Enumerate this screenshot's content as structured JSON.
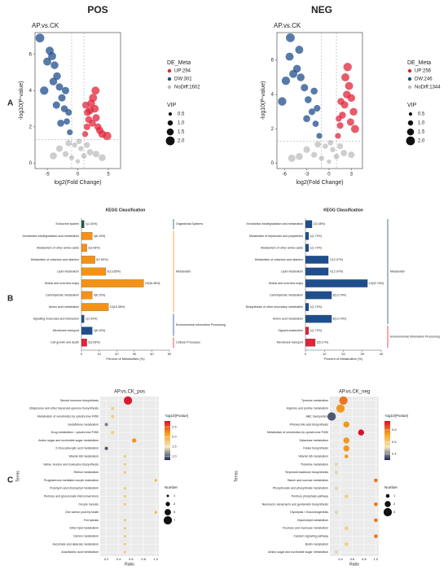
{
  "headers": [
    "POS",
    "NEG"
  ],
  "panel_labels": [
    "A",
    "B",
    "C"
  ],
  "chart_data": [
    {
      "type": "scatter",
      "title": "AP.vs.CK",
      "xlabel": "log2(Fold Change)",
      "ylabel": "-log10(P-value)",
      "xlim": [
        -7,
        7
      ],
      "ylim": [
        -0.3,
        7.2
      ],
      "xticks": [
        -5,
        0,
        5
      ],
      "yticks": [
        0,
        2,
        4,
        6
      ],
      "vlines": [
        -1,
        1
      ],
      "hline": 1.3,
      "legend_title": "DE_Meta",
      "size_legend": {
        "title": "VIP",
        "values": [
          0.5,
          {
            "value": 1,
            "label": "1.0"
          },
          1.5,
          {
            "value": 2,
            "label": "2.0"
          }
        ]
      },
      "series": [
        {
          "name": "UP:294",
          "color": "#e0243a",
          "x": [
            1.2,
            1.5,
            1.8,
            2.0,
            2.2,
            2.5,
            2.8,
            3.0,
            3.3,
            1.6,
            2.4,
            3.6,
            4.0,
            4.8,
            1.3,
            2.9
          ],
          "values": [
            1.6,
            2.0,
            2.4,
            2.9,
            3.3,
            3.6,
            3.0,
            2.5,
            2.0,
            2.8,
            2.2,
            1.8,
            1.6,
            1.5,
            3.2,
            4.0
          ],
          "size": [
            1.2,
            1.4,
            1.5,
            1.6,
            1.7,
            1.8,
            1.7,
            1.6,
            1.5,
            1.6,
            1.5,
            1.6,
            1.7,
            1.9,
            1.5,
            1.8
          ]
        },
        {
          "name": "DW:301",
          "color": "#1f4e8c",
          "x": [
            -1.3,
            -1.8,
            -2.2,
            -2.6,
            -3.0,
            -3.4,
            -3.8,
            -4.2,
            -4.6,
            -5.0,
            -4.0,
            -3.5,
            -2.8,
            -5.5,
            -6.2,
            -1.5,
            -2.0
          ],
          "values": [
            1.7,
            2.3,
            3.0,
            3.6,
            4.2,
            4.8,
            5.4,
            5.9,
            6.2,
            5.6,
            4.5,
            3.2,
            2.2,
            4.0,
            6.9,
            2.8,
            4.0
          ],
          "size": [
            1.2,
            1.3,
            1.5,
            1.6,
            1.6,
            1.7,
            1.7,
            1.8,
            1.8,
            1.8,
            1.7,
            1.6,
            1.5,
            1.9,
            2.0,
            1.4,
            1.6
          ]
        },
        {
          "name": "NoDiff:1602",
          "color": "#bdbdbd",
          "x": [
            -2,
            -1,
            0,
            0.5,
            1,
            2,
            -0.5,
            0.2,
            -3,
            3,
            -1.5,
            1.5,
            4,
            -4
          ],
          "values": [
            0.5,
            0.3,
            0.1,
            0.8,
            0.4,
            0.6,
            1.0,
            1.2,
            0.8,
            0.5,
            1.1,
            1.0,
            0.3,
            0.4
          ],
          "size": [
            1.2,
            1.0,
            0.8,
            1.0,
            1.1,
            1.3,
            1.0,
            1.1,
            1.4,
            1.4,
            1.3,
            1.2,
            1.5,
            1.5
          ]
        }
      ]
    },
    {
      "type": "scatter",
      "title": "AP.vs.CK",
      "xlabel": "log2(Fold Change)",
      "ylabel": "-log10(P-value)",
      "xlim": [
        -7,
        4.5
      ],
      "ylim": [
        -0.3,
        7.6
      ],
      "xticks": [
        -6,
        -3,
        0,
        3
      ],
      "yticks": [
        0,
        2,
        4,
        6
      ],
      "vlines": [
        -1,
        1
      ],
      "hline": 1.3,
      "legend_title": "DE_Meta",
      "size_legend": {
        "title": "VIP",
        "values": [
          0.5,
          {
            "value": 1,
            "label": "1.0"
          },
          1.5,
          {
            "value": 2,
            "label": "2.0"
          }
        ]
      },
      "series": [
        {
          "name": "UP:256",
          "color": "#e0243a",
          "x": [
            1.2,
            1.5,
            1.8,
            2.1,
            2.4,
            2.7,
            3.0,
            3.3,
            1.6,
            2.2,
            2.9,
            3.5,
            1.3,
            2.5
          ],
          "values": [
            1.6,
            2.2,
            2.8,
            3.4,
            4.0,
            4.5,
            3.8,
            3.0,
            3.6,
            5.0,
            2.4,
            2.0,
            2.6,
            5.6
          ],
          "size": [
            1.2,
            1.4,
            1.5,
            1.6,
            1.7,
            1.8,
            1.7,
            1.7,
            1.5,
            1.8,
            1.6,
            1.8,
            1.3,
            1.9
          ]
        },
        {
          "name": "DW:246",
          "color": "#1f4e8c",
          "x": [
            -1.3,
            -1.8,
            -2.3,
            -2.8,
            -3.3,
            -3.8,
            -4.3,
            -4.8,
            -5.3,
            -5.8,
            -4.0,
            -3.0,
            -2.0,
            -6.3,
            -5.2,
            -1.6
          ],
          "values": [
            1.6,
            2.3,
            3.0,
            3.7,
            4.4,
            5.0,
            5.5,
            5.2,
            6.2,
            4.8,
            6.6,
            2.6,
            4.2,
            3.6,
            7.3,
            3.2
          ],
          "size": [
            1.2,
            1.3,
            1.4,
            1.5,
            1.6,
            1.7,
            1.7,
            1.8,
            1.8,
            1.9,
            1.8,
            1.5,
            1.5,
            1.9,
            2.0,
            1.4
          ]
        },
        {
          "name": "NoDiff:1344",
          "color": "#bdbdbd",
          "x": [
            -2,
            -1,
            0,
            0.5,
            1,
            2,
            -0.5,
            0.2,
            -3,
            3,
            -1.5,
            1.5,
            -4,
            -5
          ],
          "values": [
            0.5,
            0.3,
            0.1,
            0.8,
            0.4,
            0.6,
            1.0,
            1.2,
            0.8,
            0.5,
            1.1,
            1.0,
            0.4,
            0.3
          ],
          "size": [
            1.2,
            1.0,
            0.8,
            1.0,
            1.1,
            1.3,
            1.0,
            1.1,
            1.4,
            1.4,
            1.3,
            1.2,
            1.5,
            1.6
          ]
        }
      ]
    },
    {
      "type": "bar",
      "title": "KEGG Classification",
      "xlabel": "Percent of Metabolites (%)",
      "xlim": [
        0,
        50
      ],
      "xticks": [
        0,
        10,
        20,
        30,
        40,
        50
      ],
      "categories": [
        "Endocrine system",
        "Xenobiotics biodegradation and metabolism",
        "Metabolism of other amino acids",
        "Metabolism of cofactors and vitamins",
        "Lipid metabolism",
        "Global and overview maps",
        "Carbohydrate metabolism",
        "Amino acid metabolism",
        "Signaling molecules and interaction",
        "Membrane transport",
        "Cell growth and death"
      ],
      "values": [
        1.54,
        6.15,
        3.08,
        7.69,
        13.85,
        35.38,
        6.15,
        15.38,
        1.54,
        6.15,
        3.08
      ],
      "value_labels": [
        "1(1.54%)",
        "4(6.15%)",
        "2(3.08%)",
        "5(7.69%)",
        "9(13.85%)",
        "23(35.38%)",
        "4(6.15%)",
        "10(15.38%)",
        "1(1.54%)",
        "4(6.15%)",
        "2(3.08%)"
      ],
      "category_groups": [
        "Organismal Systems",
        "Metabolism",
        "Metabolism",
        "Metabolism",
        "Metabolism",
        "Metabolism",
        "Metabolism",
        "Metabolism",
        "Environmental Information Processing",
        "Environmental Information Processing",
        "Cellular Processes"
      ],
      "groups": [
        {
          "name": "Organismal Systems",
          "color": "#1d5c4a"
        },
        {
          "name": "Metabolism",
          "color": "#f39219"
        },
        {
          "name": "Environmental Information Processing",
          "color": "#1f4e8c"
        },
        {
          "name": "Cellular Processes",
          "color": "#e0243a"
        }
      ]
    },
    {
      "type": "bar",
      "title": "KEGG Classification",
      "xlabel": "Percent of Metabolites (%)",
      "xlim": [
        0,
        40
      ],
      "xticks": [
        0,
        10,
        20,
        30,
        40
      ],
      "categories": [
        "Xenobiotics biodegradation and metabolism",
        "Metabolism of terpenoids and polyketides",
        "Metabolism of other amino acids",
        "Metabolism of cofactors and vitamins",
        "Lipid metabolism",
        "Global and overview maps",
        "Carbohydrate metabolism",
        "Biosynthesis of other secondary metabolites",
        "Amino acid metabolism",
        "Signal transduction",
        "Membrane transport"
      ],
      "values": [
        3.45,
        1.72,
        1.72,
        12.07,
        12.07,
        32.76,
        13.79,
        1.72,
        13.79,
        1.72,
        5.17
      ],
      "value_labels": [
        "2(3.45%)",
        "1(1.72%)",
        "1(1.72%)",
        "7(12.07%)",
        "7(12.07%)",
        "19(32.76%)",
        "8(13.79%)",
        "1(1.72%)",
        "8(13.79%)",
        "1(1.72%)",
        "3(5.17%)"
      ],
      "category_groups": [
        "Metabolism",
        "Metabolism",
        "Metabolism",
        "Metabolism",
        "Metabolism",
        "Metabolism",
        "Metabolism",
        "Metabolism",
        "Metabolism",
        "Environmental Information Processing",
        "Environmental Information Processing"
      ],
      "groups": [
        {
          "name": "Metabolism",
          "color": "#1f4e8c"
        },
        {
          "name": "Environmental Information Processing",
          "color": "#e0243a"
        }
      ]
    },
    {
      "type": "bubble",
      "title": "AP.vs.CK_pos",
      "xlabel": "Ratio",
      "ylabel": "Terms",
      "xlim": [
        0.1,
        1.05
      ],
      "xticks": [
        0.2,
        0.4,
        0.6,
        0.8,
        {
          "value": 1,
          "label": "1.0"
        }
      ],
      "categories": [
        "Steroid hormone biosynthesis",
        "Ubiquinone and other terpenoid-quinone biosynthesis",
        "Metabolism of xenobiotics by cytochrome P450",
        "Glutathione metabolism",
        "Drug metabolism - cytochrome P450",
        "Amino sugar and nucleotide sugar metabolism",
        "2-Oxocarboxylic acid metabolism",
        "Vitamin B6 metabolism",
        "Valine, leucine and isoleucine biosynthesis",
        "Retinol metabolism",
        "Progesterone-mediated oocyte maturation",
        "Porphyrin and chlorophyll metabolism",
        "Pentose and glucuronate interconversions",
        "Oocyte meiosis",
        "One carbon pool by folate",
        "Ferroptosis",
        "Ether lipid metabolism",
        "Carbon metabolism",
        "Ascorbate and aldarate metabolism",
        "Arachidonic acid metabolism"
      ],
      "values": [
        0.55,
        0.3,
        0.3,
        0.2,
        0.3,
        0.65,
        0.2,
        0.5,
        0.5,
        0.5,
        1.0,
        0.5,
        0.5,
        0.5,
        1.0,
        0.5,
        0.5,
        0.5,
        0.5,
        0.5
      ],
      "pvalue": [
        2.75,
        1.7,
        1.7,
        1.1,
        1.7,
        2.2,
        0.95,
        1.8,
        1.8,
        1.8,
        2.0,
        1.8,
        1.8,
        1.8,
        2.0,
        1.8,
        1.8,
        1.8,
        1.8,
        1.8
      ],
      "number": [
        7,
        2,
        2,
        2,
        2,
        3,
        2,
        1,
        1,
        1,
        1,
        1,
        1,
        1,
        1,
        1,
        1,
        1,
        1,
        1
      ],
      "color_title": "-log10(Pvalue)",
      "clim": [
        0.8,
        2.8
      ],
      "colors": [
        "#1c2a5c",
        "#f5e7c0",
        "#f5a21b",
        "#d9102a"
      ],
      "cticks": [
        {
          "value": 1,
          "label": "1.0"
        },
        1.5,
        {
          "value": 2,
          "label": "2.0"
        },
        2.5
      ],
      "size_title": "Number",
      "size_values": [
        1,
        3,
        5,
        7
      ]
    },
    {
      "type": "bubble",
      "title": "AP.vs.CK_neg",
      "xlabel": "Ratio",
      "ylabel": "Terms",
      "xlim": [
        0.22,
        1.05
      ],
      "xticks": [
        0.4,
        0.6,
        0.8,
        {
          "value": 1,
          "label": "1.0"
        }
      ],
      "categories": [
        "Tyrosine metabolism",
        "Arginine and proline metabolism",
        "ABC transporters",
        "Primary bile acid biosynthesis",
        "Metabolism of xenobiotics by cytochrome P450",
        "Galactose metabolism",
        "Folate biosynthesis",
        "Vitamin B6 metabolism",
        "Thiamine metabolism",
        "Terpenoid backbone biosynthesis",
        "Starch and sucrose metabolism",
        "Phosphonate and phosphinate metabolism",
        "Pentose phosphate pathway",
        "Neomycin, kanamycin and gentamicin biosynthesis",
        "Glycolysis / Gluconeogenesis",
        "Glycerolipid metabolism",
        "Fructose and mannose metabolism",
        "Calcium signaling pathway",
        "Biotin metabolism",
        "Amino sugar and nucleotide sugar metabolism"
      ],
      "values": [
        0.45,
        0.4,
        0.25,
        0.5,
        0.75,
        0.5,
        0.5,
        0.5,
        0.33,
        0.33,
        1.0,
        0.33,
        0.5,
        1.0,
        0.33,
        1.0,
        0.5,
        1.0,
        0.5,
        0.33
      ],
      "pvalue": [
        0.8,
        0.75,
        0.35,
        0.75,
        0.95,
        0.75,
        0.75,
        0.75,
        0.5,
        0.5,
        0.8,
        0.5,
        0.6,
        0.8,
        0.5,
        0.8,
        0.6,
        0.8,
        0.6,
        0.5
      ],
      "number": [
        3,
        3,
        3,
        2,
        2,
        2,
        2,
        1,
        1,
        1,
        1,
        1,
        1,
        1,
        1,
        1,
        1,
        1,
        1,
        1
      ],
      "color_title": "-log10(Pvalue)",
      "clim": [
        0.3,
        0.95
      ],
      "colors": [
        "#1c2a5c",
        "#f5e7c0",
        "#f5a21b",
        "#d9102a"
      ],
      "cticks": [
        0.4,
        0.6,
        0.8
      ],
      "size_title": "Number",
      "size_values": [
        1,
        2,
        3
      ]
    }
  ]
}
